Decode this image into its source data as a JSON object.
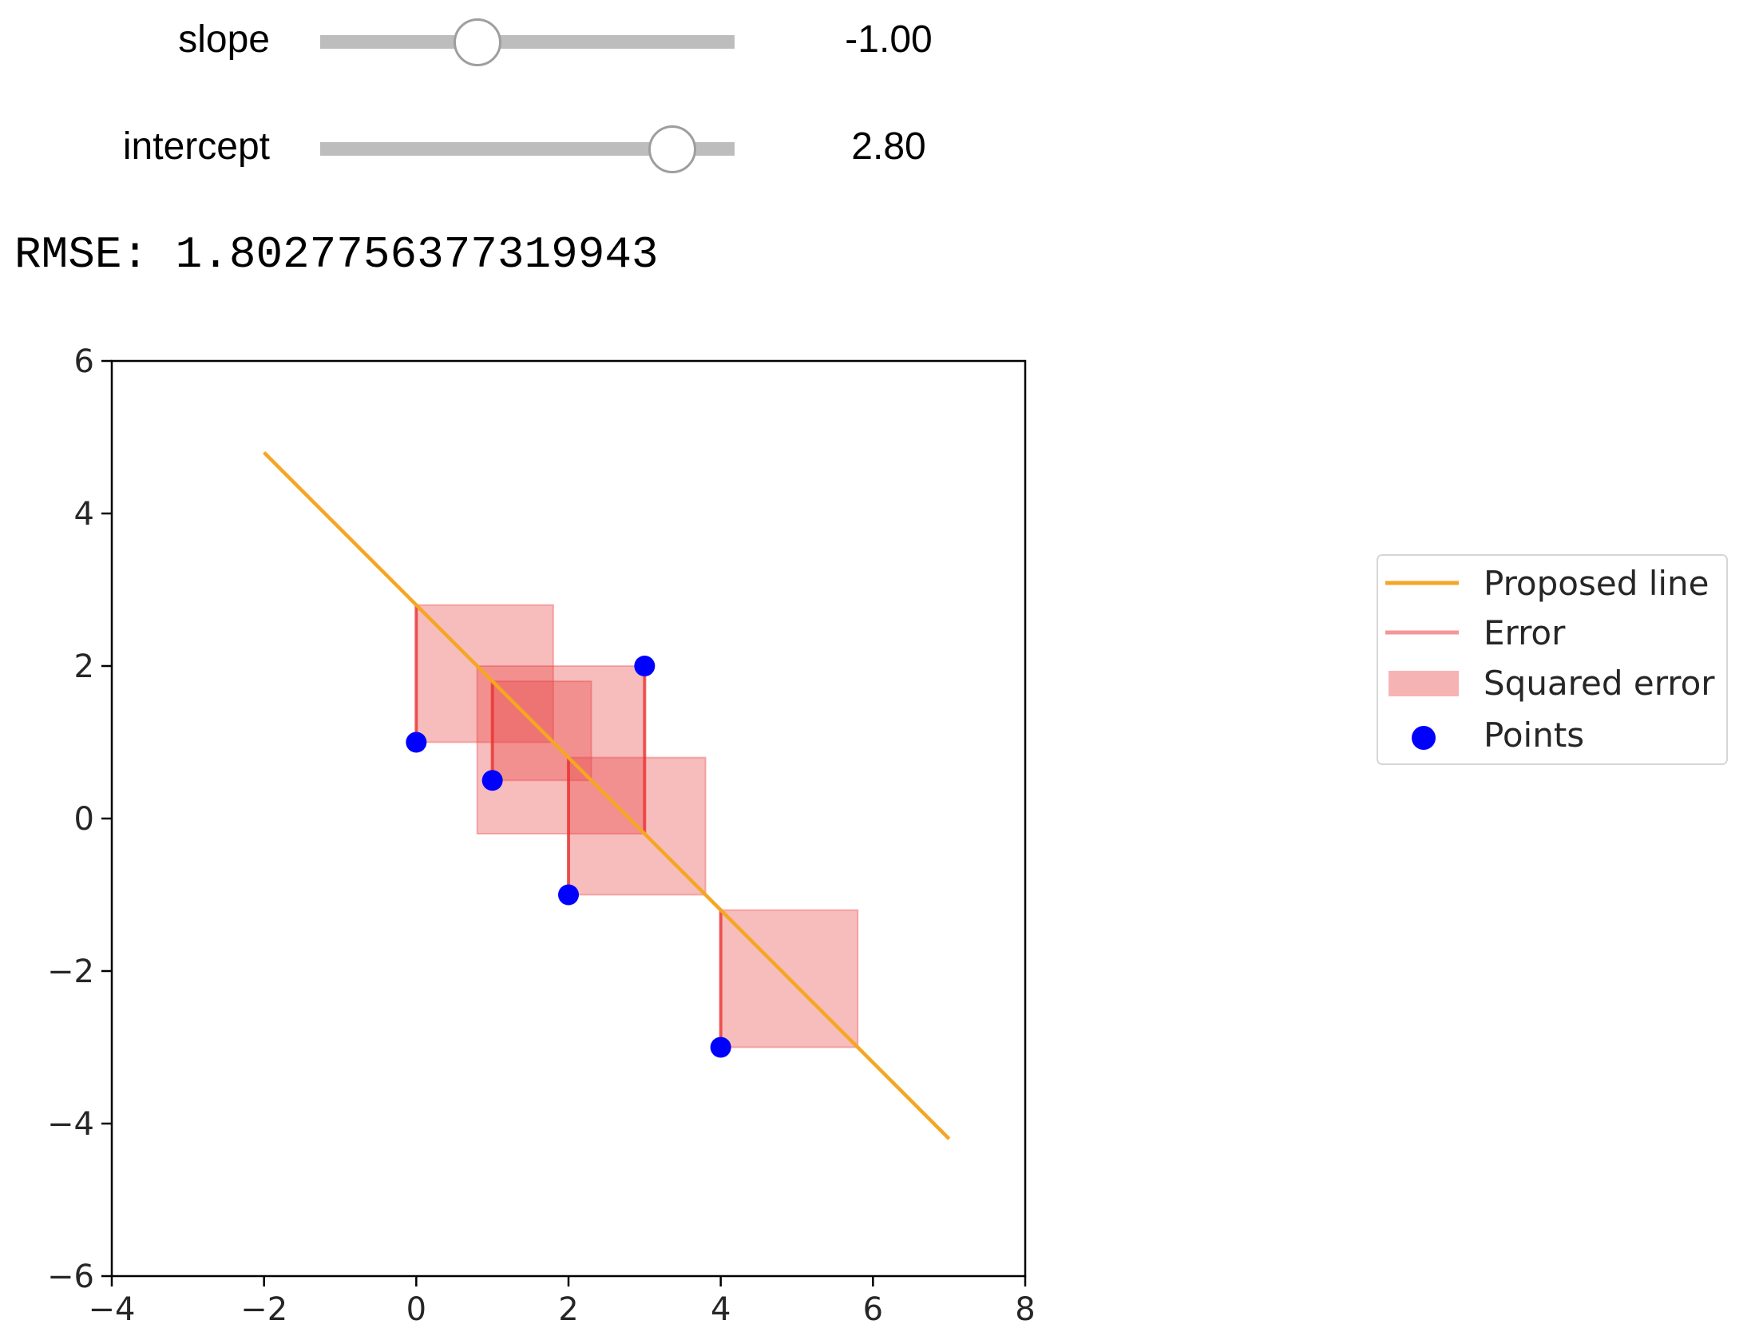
{
  "widgets": {
    "slope": {
      "label": "slope",
      "value": -1.0,
      "display": "-1.00",
      "fraction": 0.38
    },
    "intercept": {
      "label": "intercept",
      "value": 2.8,
      "display": "2.80",
      "fraction": 0.85
    }
  },
  "rmse_text": "RMSE: 1.8027756377319943",
  "chart_data": {
    "type": "scatter",
    "xlim": [
      -4,
      8
    ],
    "ylim": [
      -6,
      6
    ],
    "xticks": [
      "−4",
      "−2",
      "0",
      "2",
      "4",
      "6",
      "8"
    ],
    "yticks": [
      "−6",
      "−4",
      "−2",
      "0",
      "2",
      "4",
      "6"
    ],
    "xtick_values": [
      -4,
      -2,
      0,
      2,
      4,
      6,
      8
    ],
    "ytick_values": [
      -6,
      -4,
      -2,
      0,
      2,
      4,
      6
    ],
    "grid": false,
    "legend_placement": "right, outside plot",
    "points": {
      "x": [
        0,
        1,
        2,
        3,
        4
      ],
      "y": [
        1,
        0.5,
        -1,
        2,
        -3
      ]
    },
    "proposed_line": {
      "slope": -1.0,
      "intercept": 2.8,
      "x_range": [
        -2,
        7
      ]
    },
    "legend": [
      "Proposed line",
      "Error",
      "Squared error",
      "Points"
    ],
    "colors": {
      "line": "#f5a623",
      "error": "#e8302f",
      "square": "#e84040",
      "points": "#0000ff"
    }
  }
}
